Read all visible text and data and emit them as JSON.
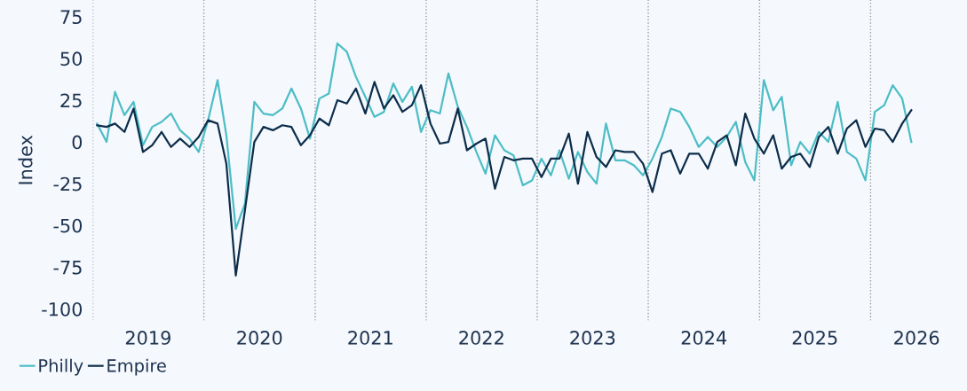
{
  "chart_data": {
    "type": "line",
    "ylabel": "Index",
    "x": [
      "2019-01-15",
      "2019-02-15",
      "2019-03-15",
      "2019-04-15",
      "2019-05-15",
      "2019-06-15",
      "2019-07-15",
      "2019-08-15",
      "2019-09-15",
      "2019-10-15",
      "2019-11-15",
      "2019-12-15",
      "2020-01-15",
      "2020-02-15",
      "2020-03-15",
      "2020-04-15",
      "2020-05-15",
      "2020-06-15",
      "2020-07-15",
      "2020-08-15",
      "2020-09-15",
      "2020-10-15",
      "2020-11-15",
      "2020-12-15",
      "2021-01-15",
      "2021-02-15",
      "2021-03-15",
      "2021-04-15",
      "2021-05-15",
      "2021-06-15",
      "2021-07-15",
      "2021-08-15",
      "2021-09-15",
      "2021-10-15",
      "2021-11-15",
      "2021-12-15",
      "2022-01-15",
      "2022-02-15",
      "2022-03-15",
      "2022-04-15",
      "2022-05-15",
      "2022-06-15",
      "2022-07-15",
      "2022-08-15",
      "2022-09-15",
      "2022-10-15",
      "2022-11-15",
      "2022-12-15",
      "2023-01-15",
      "2023-02-15",
      "2023-03-15",
      "2023-04-15",
      "2023-05-15",
      "2023-06-15",
      "2023-07-15",
      "2023-08-15",
      "2023-09-15",
      "2023-10-15",
      "2023-11-15",
      "2023-12-15",
      "2024-01-15",
      "2024-02-15",
      "2024-03-15",
      "2024-04-15",
      "2024-05-15",
      "2024-06-15",
      "2024-07-15",
      "2024-08-15",
      "2024-09-15",
      "2024-10-15",
      "2024-11-15",
      "2024-12-15",
      "2025-01-15",
      "2025-02-15",
      "2025-03-15",
      "2025-04-15",
      "2025-05-15",
      "2025-06-15",
      "2025-07-15",
      "2025-08-15",
      "2025-09-15",
      "2025-10-15",
      "2025-11-15",
      "2025-12-15",
      "2026-01-15",
      "2026-02-15",
      "2026-03-15",
      "2026-04-15",
      "2026-05-15"
    ],
    "series": [
      {
        "name": "Philly",
        "color": "#4dbdc6",
        "values": [
          11,
          0,
          30,
          16,
          24,
          -2,
          9,
          12,
          17,
          7,
          2,
          -6,
          13,
          37,
          4,
          -52,
          -37,
          24,
          17,
          16,
          20,
          32,
          20,
          2,
          26,
          29,
          59,
          54,
          39,
          27,
          15,
          18,
          35,
          24,
          33,
          6,
          19,
          17,
          41,
          21,
          9,
          -6,
          -19,
          4,
          -5,
          -8,
          -26,
          -23,
          -10,
          -20,
          -5,
          -22,
          -6,
          -18,
          -25,
          11,
          -11,
          -11,
          -14,
          -20,
          -10,
          3,
          20,
          18,
          9,
          -3,
          3,
          -3,
          3,
          12,
          -12,
          -23,
          37,
          19,
          27,
          -14,
          0,
          -7,
          6,
          0,
          24,
          -6,
          -10,
          -23,
          18,
          22,
          34,
          26,
          0
        ]
      },
      {
        "name": "Empire",
        "color": "#0d2d4a",
        "values": [
          10,
          9,
          11,
          6,
          20,
          -6,
          -2,
          6,
          -3,
          2,
          -3,
          3,
          13,
          11,
          -13,
          -80,
          -41,
          0,
          9,
          7,
          10,
          9,
          -2,
          4,
          14,
          10,
          25,
          23,
          32,
          17,
          36,
          20,
          28,
          18,
          22,
          34,
          11,
          -1,
          0,
          20,
          -5,
          -1,
          2,
          -28,
          -9,
          -11,
          -10,
          -10,
          -21,
          -10,
          -10,
          5,
          -25,
          6,
          -9,
          -15,
          -5,
          -6,
          -6,
          -13,
          -30,
          -7,
          -5,
          -19,
          -7,
          -7,
          -16,
          0,
          4,
          -14,
          17,
          2,
          -7,
          4,
          -16,
          -9,
          -7,
          -15,
          3,
          9,
          -7,
          8,
          13,
          -3,
          8,
          7,
          0,
          11,
          19
        ]
      }
    ],
    "xlim": [
      "2019-01-01",
      "2026-11-14"
    ],
    "xticks": [
      {
        "value": "2019-07-02",
        "label": "2019"
      },
      {
        "value": "2020-07-02",
        "label": "2020"
      },
      {
        "value": "2021-07-02",
        "label": "2021"
      },
      {
        "value": "2022-07-02",
        "label": "2022"
      },
      {
        "value": "2023-07-02",
        "label": "2023"
      },
      {
        "value": "2024-07-02",
        "label": "2024"
      },
      {
        "value": "2025-07-02",
        "label": "2025"
      },
      {
        "value": "2026-06-01",
        "label": "2026"
      }
    ],
    "ylim": [
      -107,
      85
    ],
    "yticks": [
      -100,
      -75,
      -50,
      -25,
      0,
      25,
      50,
      75
    ],
    "ref_lines": [
      {
        "axis": "x",
        "value": "2019-01-01",
        "color": "#999999",
        "line_style": "dotted"
      },
      {
        "axis": "x",
        "value": "2020-01-01",
        "color": "#999999",
        "line_style": "dotted"
      },
      {
        "axis": "x",
        "value": "2021-01-01",
        "color": "#999999",
        "line_style": "dotted"
      },
      {
        "axis": "x",
        "value": "2022-01-01",
        "color": "#999999",
        "line_style": "dotted"
      },
      {
        "axis": "x",
        "value": "2023-01-01",
        "color": "#999999",
        "line_style": "dotted"
      },
      {
        "axis": "x",
        "value": "2024-01-01",
        "color": "#999999",
        "line_style": "dotted"
      },
      {
        "axis": "x",
        "value": "2025-01-01",
        "color": "#999999",
        "line_style": "dotted"
      },
      {
        "axis": "x",
        "value": "2026-01-01",
        "color": "#999999",
        "line_style": "dotted"
      }
    ],
    "grid": false,
    "legend": "bottom left",
    "marker": "none",
    "line_style": "solid"
  }
}
